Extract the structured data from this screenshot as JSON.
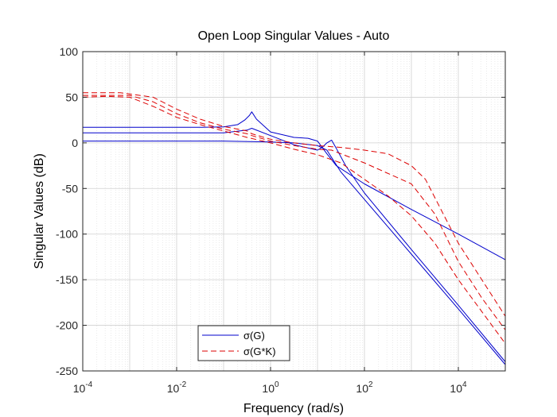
{
  "chart_data": {
    "type": "line",
    "title": "Open Loop Singular Values - Auto",
    "xlabel": "Frequency (rad/s)",
    "ylabel": "Singular Values (dB)",
    "xscale": "log",
    "xlim_exp": [
      -4,
      5
    ],
    "ylim": [
      -250,
      100
    ],
    "xticks": [
      {
        "base": "10",
        "exp": "-4"
      },
      {
        "base": "10",
        "exp": "-2"
      },
      {
        "base": "10",
        "exp": "0"
      },
      {
        "base": "10",
        "exp": "2"
      },
      {
        "base": "10",
        "exp": "4"
      }
    ],
    "yticks": [
      "100",
      "50",
      "0",
      "-50",
      "-100",
      "-150",
      "-200",
      "-250"
    ],
    "grid": true,
    "minor_grid": true,
    "legend_position": "bottom-left",
    "legend": [
      {
        "label": "σ(G)",
        "color": "#0000cc",
        "style": "solid"
      },
      {
        "label": "σ(G*K)",
        "color": "#dd0000",
        "style": "dashed"
      }
    ],
    "series": [
      {
        "name": "σ(G) 1",
        "group": "G",
        "color": "#0000cc",
        "dash": false,
        "log10w": [
          -4,
          -1.5,
          -1,
          -0.7,
          -0.55,
          -0.45,
          -0.4,
          -0.3,
          0,
          0.5,
          0.8,
          1,
          1.2,
          1.4,
          2,
          3,
          4,
          5
        ],
        "db": [
          17,
          17,
          17.5,
          20,
          25,
          30,
          34,
          26,
          12,
          6,
          5,
          2,
          -12,
          -25,
          -45,
          -73,
          -100,
          -128
        ]
      },
      {
        "name": "σ(G) 2",
        "group": "G",
        "color": "#0000cc",
        "dash": false,
        "log10w": [
          -4,
          -1,
          -0.5,
          -0.4,
          0,
          0.5,
          1,
          1.1,
          1.2,
          1.3,
          1.4,
          1.6,
          2,
          3,
          4,
          5
        ],
        "db": [
          11,
          11,
          14,
          16,
          8,
          -2,
          -8,
          -5,
          0,
          3,
          -6,
          -25,
          -55,
          -117,
          -178,
          -240
        ]
      },
      {
        "name": "σ(G) 3",
        "group": "G",
        "color": "#0000cc",
        "dash": false,
        "log10w": [
          -4,
          -1,
          0,
          0.5,
          1,
          1.2,
          1.35,
          1.5,
          2,
          3,
          4,
          5
        ],
        "db": [
          2,
          2,
          1,
          0,
          -3,
          -8,
          -20,
          -32,
          -62,
          -122,
          -182,
          -243
        ]
      },
      {
        "name": "σ(G*K) 1",
        "group": "GK",
        "color": "#dd0000",
        "dash": true,
        "log10w": [
          -4,
          -3.2,
          -2.5,
          -2,
          -1.5,
          -1,
          -0.5,
          -0.4,
          0,
          0.5,
          1,
          1.5,
          2,
          2.5,
          3,
          3.3,
          3.6,
          4,
          4.5,
          5
        ],
        "db": [
          55,
          55,
          50,
          37,
          26,
          18,
          13,
          10,
          4,
          0,
          -3,
          -5,
          -8,
          -12,
          -25,
          -40,
          -70,
          -110,
          -150,
          -190
        ]
      },
      {
        "name": "σ(G*K) 2",
        "group": "GK",
        "color": "#dd0000",
        "dash": true,
        "log10w": [
          -4,
          -3,
          -2.5,
          -2,
          -1.5,
          -1,
          -0.5,
          -0.4,
          0,
          0.5,
          1,
          1.3,
          2,
          3,
          3.5,
          4,
          4.5,
          5
        ],
        "db": [
          52,
          52,
          45,
          32,
          22,
          15,
          10,
          8,
          2,
          -3,
          -7,
          -8,
          -22,
          -45,
          -78,
          -130,
          -170,
          -205
        ]
      },
      {
        "name": "σ(G*K) 3",
        "group": "GK",
        "color": "#dd0000",
        "dash": true,
        "log10w": [
          -4,
          -3.5,
          -3,
          -2.5,
          -2,
          -1.5,
          -1,
          -0.5,
          0,
          0.5,
          1,
          1.5,
          2,
          2.5,
          3,
          3.5,
          4,
          4.5,
          5
        ],
        "db": [
          50,
          51,
          50,
          40,
          28,
          20,
          13,
          6,
          0,
          -7,
          -13,
          -22,
          -40,
          -58,
          -80,
          -110,
          -150,
          -185,
          -220
        ]
      }
    ]
  }
}
